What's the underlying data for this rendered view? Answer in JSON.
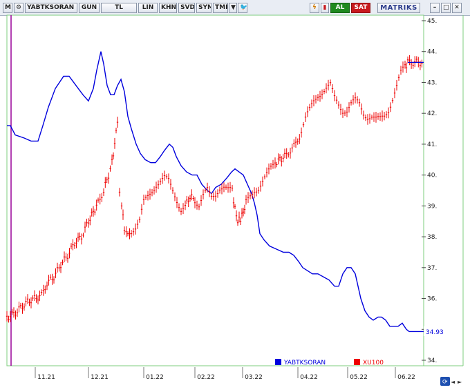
{
  "toolbar": {
    "m_label": "M",
    "symbol": "YABTKSORAN",
    "period": "GUN",
    "currency": "TL",
    "scale_lin": "LIN",
    "khn": "KHN",
    "svd": "SVD",
    "sym": "SYM",
    "tmp": "TMP",
    "buy_label": "AL",
    "sell_label": "SAT",
    "brand": "MATRIKS"
  },
  "colors": {
    "blue_series": "#0000dd",
    "red_series": "#ee0000",
    "chart_border": "#7ccc7c",
    "background": "#ffffff"
  },
  "chart_data": {
    "type": "line",
    "title": "",
    "y_axis": {
      "min": 34,
      "max": 45,
      "ticks": [
        "34.",
        "35.",
        "36.",
        "37.",
        "38.",
        "39.",
        "40.",
        "41.",
        "42.",
        "43.",
        "44.",
        "45."
      ]
    },
    "x_axis": {
      "ticks": [
        "11.21",
        "12.21",
        "01.22",
        "02.22",
        "03.22",
        "04.22",
        "05.22",
        "06.22"
      ]
    },
    "last_value_label": "34.93",
    "legend": [
      {
        "name": "YABTKSORAN",
        "color": "#0000dd"
      },
      {
        "name": "XU100",
        "color": "#ee0000"
      }
    ],
    "series": [
      {
        "name": "YABTKSORAN",
        "style": "line",
        "color": "#0000dd",
        "points": [
          [
            10,
            41.6
          ],
          [
            15,
            41.6
          ],
          [
            22,
            41.3
          ],
          [
            35,
            41.2
          ],
          [
            45,
            41.1
          ],
          [
            55,
            41.1
          ],
          [
            62,
            41.6
          ],
          [
            70,
            42.2
          ],
          [
            80,
            42.8
          ],
          [
            92,
            43.2
          ],
          [
            100,
            43.2
          ],
          [
            110,
            42.9
          ],
          [
            120,
            42.6
          ],
          [
            128,
            42.4
          ],
          [
            135,
            42.8
          ],
          [
            140,
            43.4
          ],
          [
            146,
            44.0
          ],
          [
            150,
            43.6
          ],
          [
            155,
            42.9
          ],
          [
            160,
            42.6
          ],
          [
            165,
            42.6
          ],
          [
            170,
            42.9
          ],
          [
            175,
            43.1
          ],
          [
            180,
            42.7
          ],
          [
            185,
            41.9
          ],
          [
            190,
            41.5
          ],
          [
            197,
            41.0
          ],
          [
            203,
            40.7
          ],
          [
            210,
            40.5
          ],
          [
            218,
            40.4
          ],
          [
            225,
            40.4
          ],
          [
            232,
            40.6
          ],
          [
            238,
            40.8
          ],
          [
            245,
            41.0
          ],
          [
            250,
            40.9
          ],
          [
            255,
            40.6
          ],
          [
            262,
            40.3
          ],
          [
            270,
            40.1
          ],
          [
            278,
            40.0
          ],
          [
            285,
            40.0
          ],
          [
            292,
            39.7
          ],
          [
            300,
            39.5
          ],
          [
            306,
            39.4
          ],
          [
            312,
            39.6
          ],
          [
            320,
            39.7
          ],
          [
            328,
            39.9
          ],
          [
            335,
            40.1
          ],
          [
            340,
            40.2
          ],
          [
            346,
            40.1
          ],
          [
            352,
            40.0
          ],
          [
            358,
            39.7
          ],
          [
            364,
            39.4
          ],
          [
            368,
            39.1
          ],
          [
            372,
            38.7
          ],
          [
            376,
            38.1
          ],
          [
            382,
            37.9
          ],
          [
            390,
            37.7
          ],
          [
            400,
            37.6
          ],
          [
            410,
            37.5
          ],
          [
            418,
            37.5
          ],
          [
            425,
            37.4
          ],
          [
            432,
            37.2
          ],
          [
            438,
            37.0
          ],
          [
            445,
            36.9
          ],
          [
            452,
            36.8
          ],
          [
            460,
            36.8
          ],
          [
            468,
            36.7
          ],
          [
            476,
            36.6
          ],
          [
            484,
            36.4
          ],
          [
            490,
            36.4
          ],
          [
            496,
            36.8
          ],
          [
            502,
            37.0
          ],
          [
            508,
            37.0
          ],
          [
            514,
            36.8
          ],
          [
            518,
            36.4
          ],
          [
            522,
            36.0
          ],
          [
            528,
            35.6
          ],
          [
            534,
            35.4
          ],
          [
            540,
            35.3
          ],
          [
            547,
            35.4
          ],
          [
            552,
            35.4
          ],
          [
            558,
            35.3
          ],
          [
            564,
            35.1
          ],
          [
            570,
            35.1
          ],
          [
            576,
            35.1
          ],
          [
            582,
            35.2
          ],
          [
            588,
            35.0
          ],
          [
            592,
            34.93
          ],
          [
            613,
            34.93
          ]
        ]
      },
      {
        "name": "XU100",
        "style": "bars",
        "color": "#ee0000",
        "points": [
          [
            10,
            35.4
          ],
          [
            20,
            35.5
          ],
          [
            30,
            35.7
          ],
          [
            40,
            35.9
          ],
          [
            50,
            36.0
          ],
          [
            60,
            36.1
          ],
          [
            68,
            36.5
          ],
          [
            78,
            36.7
          ],
          [
            88,
            37.1
          ],
          [
            98,
            37.4
          ],
          [
            108,
            37.8
          ],
          [
            118,
            38.0
          ],
          [
            128,
            38.5
          ],
          [
            135,
            38.8
          ],
          [
            142,
            39.1
          ],
          [
            150,
            39.5
          ],
          [
            157,
            40.0
          ],
          [
            162,
            40.4
          ],
          [
            166,
            41.0
          ],
          [
            170,
            41.8
          ],
          [
            173,
            39.5
          ],
          [
            176,
            39.0
          ],
          [
            180,
            38.3
          ],
          [
            185,
            38.0
          ],
          [
            190,
            38.2
          ],
          [
            196,
            38.3
          ],
          [
            202,
            38.5
          ],
          [
            208,
            39.1
          ],
          [
            214,
            39.3
          ],
          [
            220,
            39.5
          ],
          [
            226,
            39.7
          ],
          [
            232,
            39.8
          ],
          [
            238,
            39.9
          ],
          [
            244,
            39.8
          ],
          [
            250,
            39.5
          ],
          [
            256,
            39.2
          ],
          [
            262,
            38.9
          ],
          [
            268,
            39.0
          ],
          [
            275,
            39.3
          ],
          [
            282,
            39.2
          ],
          [
            288,
            39.0
          ],
          [
            294,
            39.3
          ],
          [
            300,
            39.5
          ],
          [
            306,
            39.3
          ],
          [
            312,
            39.4
          ],
          [
            318,
            39.6
          ],
          [
            324,
            39.6
          ],
          [
            330,
            39.5
          ],
          [
            336,
            39.5
          ],
          [
            340,
            38.9
          ],
          [
            344,
            38.5
          ],
          [
            348,
            38.6
          ],
          [
            352,
            38.8
          ],
          [
            356,
            39.1
          ],
          [
            362,
            39.3
          ],
          [
            368,
            39.5
          ],
          [
            374,
            39.6
          ],
          [
            380,
            39.8
          ],
          [
            386,
            40.0
          ],
          [
            392,
            40.2
          ],
          [
            398,
            40.4
          ],
          [
            405,
            40.5
          ],
          [
            412,
            40.6
          ],
          [
            420,
            40.8
          ],
          [
            428,
            41.0
          ],
          [
            436,
            41.4
          ],
          [
            442,
            41.8
          ],
          [
            448,
            42.1
          ],
          [
            454,
            42.4
          ],
          [
            460,
            42.6
          ],
          [
            466,
            42.7
          ],
          [
            472,
            42.8
          ],
          [
            478,
            42.9
          ],
          [
            484,
            42.5
          ],
          [
            490,
            42.3
          ],
          [
            496,
            42.1
          ],
          [
            502,
            42.1
          ],
          [
            508,
            42.3
          ],
          [
            514,
            42.4
          ],
          [
            520,
            42.3
          ],
          [
            526,
            42.0
          ],
          [
            532,
            41.9
          ],
          [
            538,
            41.9
          ],
          [
            544,
            41.8
          ],
          [
            550,
            41.8
          ],
          [
            556,
            41.9
          ],
          [
            562,
            42.1
          ],
          [
            568,
            42.5
          ],
          [
            574,
            42.9
          ],
          [
            580,
            43.3
          ],
          [
            586,
            43.5
          ],
          [
            590,
            43.65
          ],
          [
            613,
            43.65
          ]
        ]
      }
    ]
  }
}
